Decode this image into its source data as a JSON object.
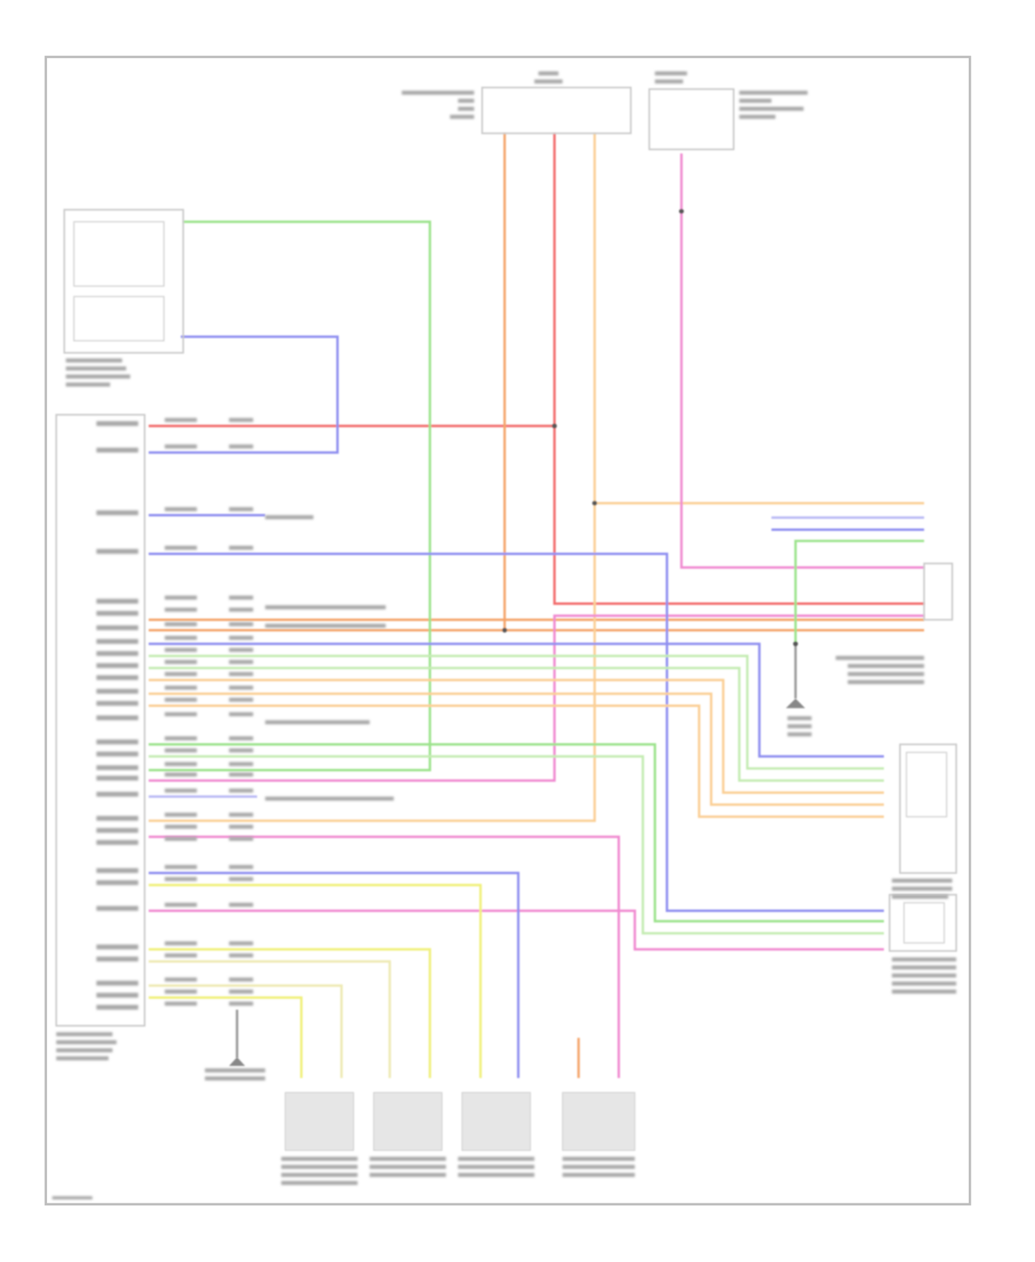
{
  "diagram": {
    "wire_colors": {
      "red": "#f26b6b",
      "orange": "#f4a46a",
      "peach": "#fbcf95",
      "pink": "#f08ad0",
      "green": "#9be38b",
      "lightgreen": "#c4ecb2",
      "blue": "#8f8ff0",
      "lavender": "#b9b9f5",
      "yellow": "#f0f07a",
      "lightyellow": "#eeeab4",
      "gray": "#9a9a9a"
    },
    "frame_color": "#bdbdbd",
    "component_fill": "#e6e6e6"
  }
}
